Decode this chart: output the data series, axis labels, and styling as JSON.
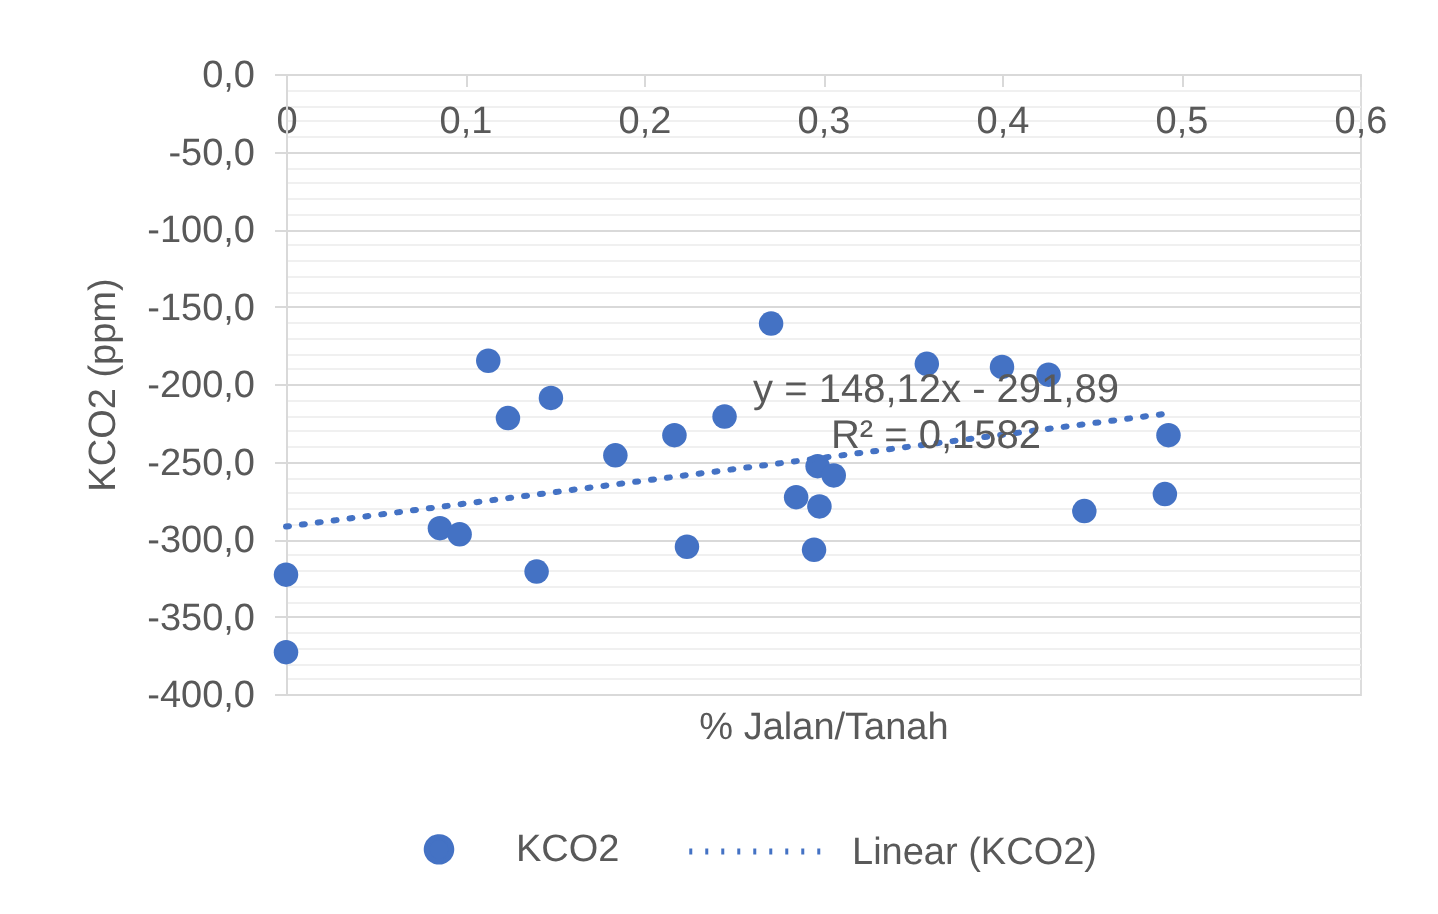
{
  "chart_data": {
    "type": "scatter",
    "xlabel": "% Jalan/Tanah",
    "ylabel": "KCO2 (ppm)",
    "xlim": [
      0,
      0.6
    ],
    "xticks": [
      0,
      {
        "value": 0.1,
        "label": "0,1"
      },
      {
        "value": 0.2,
        "label": "0,2"
      },
      {
        "value": 0.3,
        "label": "0,3"
      },
      {
        "value": 0.4,
        "label": "0,4"
      },
      {
        "value": 0.5,
        "label": "0,5"
      },
      {
        "value": 0.6,
        "label": "0,6"
      }
    ],
    "ylim": [
      -400,
      0
    ],
    "yticks": [
      {
        "value": 0,
        "label": "0,0"
      },
      {
        "value": -10,
        "label": null
      },
      {
        "value": -20,
        "label": null
      },
      {
        "value": -30,
        "label": null
      },
      {
        "value": -40,
        "label": null
      },
      {
        "value": -50,
        "label": "-50,0"
      },
      {
        "value": -60,
        "label": null
      },
      {
        "value": -70,
        "label": null
      },
      {
        "value": -80,
        "label": null
      },
      {
        "value": -90,
        "label": null
      },
      {
        "value": -100,
        "label": "-100,0"
      },
      {
        "value": -110,
        "label": null
      },
      {
        "value": -120,
        "label": null
      },
      {
        "value": -130,
        "label": null
      },
      {
        "value": -140,
        "label": null
      },
      {
        "value": -150,
        "label": "-150,0"
      },
      {
        "value": -160,
        "label": null
      },
      {
        "value": -170,
        "label": null
      },
      {
        "value": -180,
        "label": null
      },
      {
        "value": -190,
        "label": null
      },
      {
        "value": -200,
        "label": "-200,0"
      },
      {
        "value": -210,
        "label": null
      },
      {
        "value": -220,
        "label": null
      },
      {
        "value": -230,
        "label": null
      },
      {
        "value": -240,
        "label": null
      },
      {
        "value": -250,
        "label": "-250,0"
      },
      {
        "value": -260,
        "label": null
      },
      {
        "value": -270,
        "label": null
      },
      {
        "value": -280,
        "label": null
      },
      {
        "value": -290,
        "label": null
      },
      {
        "value": -300,
        "label": "-300,0"
      },
      {
        "value": -310,
        "label": null
      },
      {
        "value": -320,
        "label": null
      },
      {
        "value": -330,
        "label": null
      },
      {
        "value": -340,
        "label": null
      },
      {
        "value": -350,
        "label": "-350,0"
      },
      {
        "value": -360,
        "label": null
      },
      {
        "value": -370,
        "label": null
      },
      {
        "value": -380,
        "label": null
      },
      {
        "value": -390,
        "label": null
      },
      {
        "value": -400,
        "label": "-400,0"
      }
    ],
    "grid": "y",
    "legend": "bottom",
    "annotations": [
      "y = 148,12x - 291,89",
      "R² = 0,1582"
    ],
    "series": [
      {
        "name": "KCO2",
        "marker": "circle",
        "color": "#4472c4",
        "x": [
          0,
          0,
          0.086,
          0.097,
          0.113,
          0.124,
          0.14,
          0.148,
          0.184,
          0.217,
          0.224,
          0.245,
          0.271,
          0.285,
          0.295,
          0.297,
          0.298,
          0.306,
          0.358,
          0.4,
          0.426,
          0.446,
          0.491,
          0.493
        ],
        "values": [
          -323,
          -373,
          -293,
          -297,
          -185,
          -222,
          -321,
          -209,
          -246,
          -233,
          -305,
          -221,
          -161,
          -273,
          -307,
          -253,
          -279,
          -259,
          -187,
          -189,
          -194,
          -282,
          -271,
          -233
        ]
      },
      {
        "name": "Linear (KCO2)",
        "type": "line",
        "line_style": "dotted",
        "color": "#4472c4",
        "x": [
          0,
          0.493
        ],
        "values": [
          -292,
          -219
        ]
      }
    ]
  }
}
